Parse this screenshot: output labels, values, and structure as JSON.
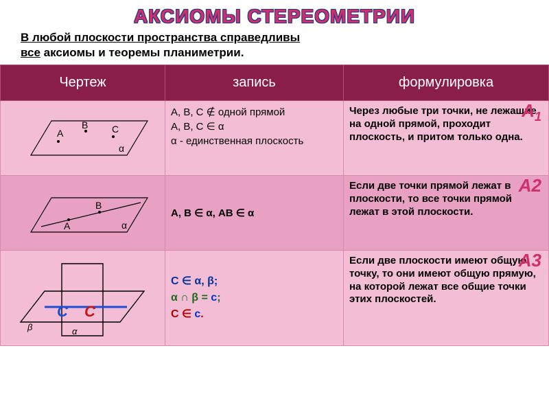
{
  "title": {
    "text": "АКСИОМЫ СТЕРЕОМЕТРИИ",
    "fill_color": "#d12f6b",
    "stroke_color": "#1a3a8a"
  },
  "subtitle": {
    "line1_u": "В любой плоскости пространства справедливы",
    "line2_u": "все",
    "line2_rest": " аксиомы и теоремы планиметрии."
  },
  "headers": {
    "col1": "Чертеж",
    "col2": "запись",
    "col3": "формулировка"
  },
  "header_bg": "#8a1e4a",
  "row_bg_a": "#f4bdd6",
  "row_bg_b": "#e8a0c3",
  "axioms": [
    {
      "label": "А",
      "sub": "1",
      "label_color": "#d12f6b",
      "formula_html": "А, В, С ∉ одной прямой<br>А, В, С ∈ α<br>α  - единственная плоскость",
      "text": "Через любые три точки, не лежащие на одной прямой, проходит плоскость, и притом только одна."
    },
    {
      "label": "А2",
      "sub": "",
      "label_color": "#d12f6b",
      "formula_html": "А, В ∈ α, АВ ∈ α",
      "text": "Если две точки прямой лежат в плоскости, то все точки прямой лежат в этой плоскости."
    },
    {
      "label": "А3",
      "sub": "",
      "label_color": "#d12f6b",
      "formula_lines": [
        {
          "t": "С ∈ α, β;",
          "cls": "nb"
        },
        {
          "t": "α ∩ β = ",
          "cls": "gr",
          "tail": "с",
          "tail_cls": "bl",
          "end": ";"
        },
        {
          "t": "С ∈ ",
          "cls": "rd",
          "tail": "с",
          "tail_cls": "bl",
          "end": "."
        }
      ],
      "text": "Если две плоскости имеют общую точку, то они имеют общую прямую, на которой лежат все общие точки этих плоскостей."
    }
  ],
  "diagram_colors": {
    "stroke": "#000000",
    "fill": "none",
    "point_label": "#000000",
    "c_blue": "#1a4fd6",
    "c_red": "#c01818"
  }
}
